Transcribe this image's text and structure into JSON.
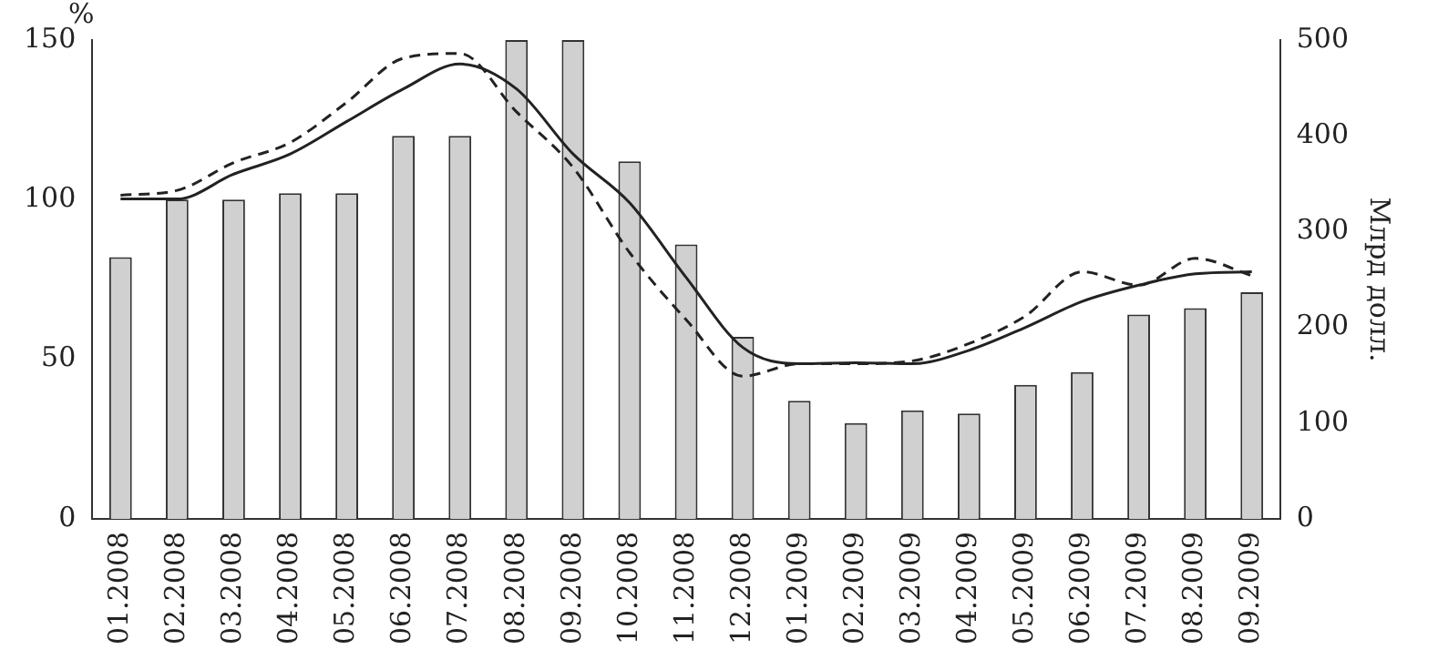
{
  "chart_data": {
    "type": "bar",
    "ylabel": "%",
    "y2label": "Млрд долл.",
    "categories": [
      "01.2008",
      "02.2008",
      "03.2008",
      "04.2008",
      "05.2008",
      "06.2008",
      "07.2008",
      "08.2008",
      "09.2008",
      "10.2008",
      "11.2008",
      "12.2008",
      "01.2009",
      "02.2009",
      "03.2009",
      "04.2009",
      "05.2009",
      "06.2009",
      "07.2009",
      "08.2009",
      "09.2009"
    ],
    "series": [
      {
        "color": "#d0d0d0",
        "values": [
          82,
          100,
          100,
          102,
          102,
          120,
          120,
          150,
          150,
          112,
          86,
          57,
          37,
          30,
          34,
          33,
          42,
          46,
          64,
          66,
          71
        ]
      },
      {
        "type": "line",
        "axis": "y2",
        "color": "#222222",
        "line_style": "solid",
        "values": [
          334,
          334,
          360,
          381,
          415,
          449,
          475,
          449,
          381,
          330,
          252,
          179,
          162,
          163,
          162,
          176,
          200,
          227,
          244,
          256,
          258
        ]
      },
      {
        "type": "line",
        "axis": "y2",
        "color": "#222222",
        "line_style": "dashed",
        "values": [
          338,
          343,
          372,
          393,
          435,
          481,
          486,
          425,
          367,
          278,
          208,
          149,
          162,
          162,
          165,
          183,
          212,
          258,
          244,
          272,
          254
        ]
      }
    ],
    "ylim": [
      0,
      150
    ],
    "yticks": [
      0,
      50,
      100,
      150
    ],
    "y2lim": [
      0,
      500
    ],
    "y2ticks": [
      0,
      100,
      200,
      300,
      400,
      500
    ],
    "grid": false,
    "legend": false,
    "marker": "none"
  }
}
